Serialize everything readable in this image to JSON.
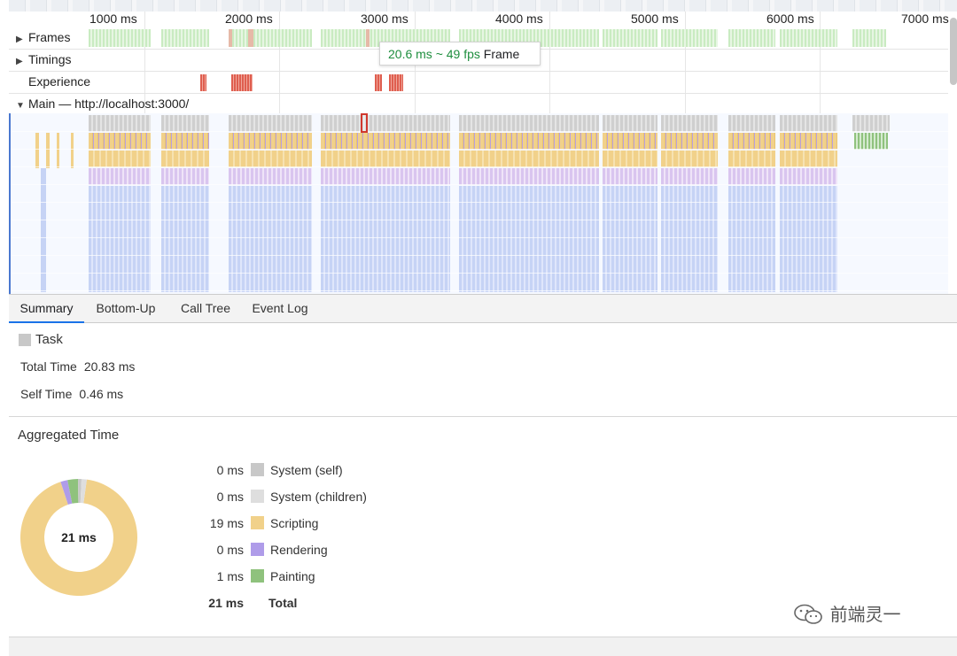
{
  "ruler": {
    "ticks": [
      "1000 ms",
      "2000 ms",
      "3000 ms",
      "4000 ms",
      "5000 ms",
      "6000 ms",
      "7000 ms"
    ]
  },
  "tracks": {
    "frames": "Frames",
    "timings": "Timings",
    "experience": "Experience",
    "main": "Main — http://localhost:3000/"
  },
  "tooltip": {
    "timing": "20.6 ms ~ 49 fps",
    "label": "Frame"
  },
  "tabs": [
    "Summary",
    "Bottom-Up",
    "Call Tree",
    "Event Log"
  ],
  "summary": {
    "task": "Task",
    "total_time_label": "Total Time",
    "total_time_value": "20.83 ms",
    "self_time_label": "Self Time",
    "self_time_value": "0.46 ms"
  },
  "aggregated": {
    "title": "Aggregated Time",
    "center": "21 ms",
    "rows": [
      {
        "value": "0 ms",
        "label": "System (self)",
        "color": "#c8c8c8",
        "ms": 0.2
      },
      {
        "value": "0 ms",
        "label": "System (children)",
        "color": "#dedede",
        "ms": 0.3
      },
      {
        "value": "19 ms",
        "label": "Scripting",
        "color": "#f1d18a",
        "ms": 19.3
      },
      {
        "value": "0 ms",
        "label": "Rendering",
        "color": "#af9ce9",
        "ms": 0.4
      },
      {
        "value": "1 ms",
        "label": "Painting",
        "color": "#8fc27d",
        "ms": 0.6
      }
    ],
    "total_value": "21 ms",
    "total_label": "Total"
  },
  "watermark": "前端灵一",
  "colors": {
    "frames": "#c9ebc1",
    "experience": "#df5e4f",
    "task": "#c8c8c8",
    "scripting": "#f1d18a",
    "rendering": "#d9c5ef",
    "layout": "#c6d3f5",
    "painting": "#8fc27d",
    "selected": "#d0392e"
  }
}
